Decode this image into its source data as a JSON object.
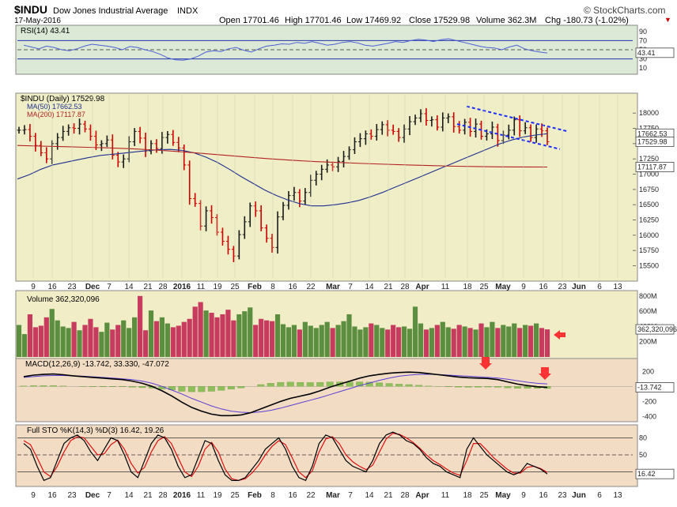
{
  "header": {
    "symbol": "$INDU",
    "name": "Dow Jones Industrial Average",
    "exchange": "INDX",
    "date": "17-May-2016",
    "open": "Open 17701.46",
    "high": "High 17701.46",
    "low": "Low 17469.92",
    "close": "Close 17529.98",
    "volume": "Volume 362.3M",
    "chg": "Chg -180.73 (-1.02%)",
    "watermark": "© StockCharts.com"
  },
  "colors": {
    "up": "#1a1a1a",
    "down": "#cc0000",
    "ma50": "#1f2f8f",
    "ma200": "#b22222",
    "rsi": "#4d5fd6",
    "channel": "#1a2cff",
    "arrow": "#ff3333",
    "vol_up": "#5b8f3f",
    "vol_down": "#c73b5e",
    "bg_rsi": "#dbe9d6",
    "bg_price": "#efeec7",
    "bg_vol": "#f1edc7",
    "bg_macd": "#f2dcc4",
    "bg_sto": "#f2dcc4"
  },
  "chart_data": [
    {
      "type": "line",
      "title": "RSI(14) 43.41",
      "legend": [
        {
          "name": "RSI(14)",
          "value": "43.41"
        }
      ],
      "ylim": [
        0,
        100
      ],
      "y_ticks": [
        10,
        30,
        50,
        70,
        90
      ],
      "levels": [
        30,
        70
      ],
      "last_label": "43.41",
      "series": [
        {
          "name": "RSI(14)",
          "values": [
            60,
            56,
            52,
            58,
            55,
            50,
            48,
            52,
            58,
            62,
            60,
            58,
            55,
            50,
            57,
            55,
            50,
            46,
            40,
            32,
            28,
            27,
            30,
            36,
            45,
            48,
            46,
            52,
            55,
            49,
            45,
            52,
            58,
            60,
            63,
            62,
            66,
            64,
            68,
            64,
            60,
            62,
            66,
            68,
            65,
            60,
            58,
            61,
            64,
            68,
            66,
            70,
            73,
            71,
            68,
            72,
            74,
            70,
            66,
            62,
            58,
            55,
            54,
            50,
            56,
            60,
            52,
            48,
            45,
            43
          ]
        }
      ]
    },
    {
      "type": "line",
      "title": "$INDU (Daily) 17529.98",
      "legend": [
        {
          "name": "$INDU (Daily)",
          "value": "17529.98"
        },
        {
          "name": "MA(50)",
          "value": "17662.53"
        },
        {
          "name": "MA(200)",
          "value": "17117.87"
        }
      ],
      "ylim": [
        15300,
        18300
      ],
      "y_ticks": [
        15500,
        15750,
        16000,
        16250,
        16500,
        16750,
        17000,
        17250,
        17500,
        17750,
        18000
      ],
      "right_labels": [
        "17662.53",
        "17529.98",
        "17117.87"
      ],
      "x_tick_labels": [
        "9",
        "16",
        "23",
        "Dec",
        "7",
        "14",
        "21",
        "28",
        "2016",
        "11",
        "19",
        "25",
        "Feb",
        "8",
        "16",
        "22",
        "Mar",
        "7",
        "14",
        "21",
        "28",
        "Apr",
        "11",
        "18",
        "25",
        "May",
        "9",
        "16",
        "23",
        "Jun",
        "6",
        "13"
      ],
      "close": [
        17720,
        17730,
        17620,
        17470,
        17350,
        17250,
        17500,
        17600,
        17700,
        17760,
        17750,
        17820,
        17740,
        17620,
        17480,
        17500,
        17560,
        17310,
        17200,
        17250,
        17530,
        17700,
        17590,
        17380,
        17500,
        17420,
        17600,
        17650,
        17520,
        17430,
        17150,
        16600,
        16520,
        16150,
        16400,
        16290,
        16050,
        15900,
        15770,
        15660,
        16010,
        16220,
        16480,
        16400,
        16120,
        15950,
        15800,
        16300,
        16490,
        16650,
        16700,
        16560,
        16700,
        16900,
        17000,
        17080,
        17150,
        17120,
        17210,
        17290,
        17400,
        17530,
        17580,
        17660,
        17620,
        17730,
        17810,
        17720,
        17700,
        17600,
        17740,
        17860,
        17920,
        17990,
        17880,
        17890,
        17770,
        17920,
        17940,
        17780,
        17720,
        17850,
        17700,
        17820,
        17620,
        17660,
        17770,
        17550,
        17640,
        17720,
        17890,
        17710,
        17760,
        17600,
        17740,
        17710,
        17530
      ],
      "series": [
        {
          "name": "MA(50)",
          "values": [
            16920,
            16990,
            17080,
            17150,
            17190,
            17230,
            17270,
            17305,
            17325,
            17345,
            17365,
            17385,
            17400,
            17405,
            17390,
            17350,
            17280,
            17190,
            17080,
            16960,
            16850,
            16740,
            16650,
            16575,
            16515,
            16480,
            16480,
            16500,
            16530,
            16570,
            16630,
            16700,
            16780,
            16860,
            16940,
            17020,
            17100,
            17180,
            17260,
            17340,
            17420,
            17500,
            17560,
            17610,
            17640,
            17662
          ]
        },
        {
          "name": "MA(200)",
          "values": [
            17470,
            17460,
            17450,
            17440,
            17430,
            17415,
            17395,
            17370,
            17340,
            17310,
            17280,
            17250,
            17225,
            17205,
            17190,
            17175,
            17162,
            17150,
            17140,
            17130,
            17124,
            17120,
            17118,
            17117
          ]
        }
      ]
    },
    {
      "type": "bar",
      "title": "Volume 362,320,096",
      "legend": [
        {
          "name": "Volume",
          "value": "362,320,096"
        }
      ],
      "ylim": [
        0,
        850
      ],
      "y_ticks": [
        200,
        400,
        600,
        800
      ],
      "tick_labels": [
        "200M",
        "400M",
        "600M",
        "800M"
      ],
      "last_label": "362,320,096",
      "values": [
        420,
        300,
        560,
        390,
        410,
        520,
        630,
        480,
        400,
        380,
        460,
        350,
        420,
        500,
        390,
        330,
        450,
        360,
        420,
        480,
        380,
        520,
        800,
        350,
        610,
        470,
        520,
        440,
        390,
        410,
        460,
        500,
        660,
        720,
        610,
        580,
        520,
        560,
        620,
        480,
        560,
        600,
        650,
        420,
        500,
        480,
        470,
        560,
        430,
        390,
        420,
        360,
        460,
        410,
        380,
        420,
        460,
        380,
        420,
        470,
        560,
        400,
        360,
        390,
        440,
        420,
        380,
        360,
        420,
        390,
        400,
        370,
        660,
        440,
        360,
        380,
        420,
        460,
        390,
        370,
        420,
        400,
        380,
        360,
        440,
        390,
        460,
        380,
        420,
        400,
        440,
        380,
        420,
        410,
        440,
        380,
        362
      ]
    },
    {
      "type": "line",
      "title": "MACD(12,26,9) -13.742, 33.330, -47.072",
      "legend": [
        {
          "name": "MACD(12,26,9)",
          "value": "-13.742"
        },
        {
          "name": "Signal",
          "value": "33.330"
        },
        {
          "name": "Histogram",
          "value": "-47.072"
        }
      ],
      "ylim": [
        -450,
        350
      ],
      "y_ticks": [
        -400,
        -200,
        200
      ],
      "last_label": "-13.742",
      "series": [
        {
          "name": "MACD",
          "values": [
            130,
            150,
            160,
            165,
            155,
            140,
            130,
            120,
            110,
            100,
            90,
            70,
            40,
            0,
            -60,
            -130,
            -210,
            -280,
            -330,
            -370,
            -390,
            -390,
            -380,
            -350,
            -300,
            -250,
            -200,
            -160,
            -130,
            -100,
            -60,
            -10,
            30,
            70,
            110,
            140,
            160,
            175,
            185,
            190,
            185,
            170,
            155,
            140,
            125,
            115,
            110,
            105,
            90,
            60,
            30,
            10,
            -5,
            -13.742
          ]
        },
        {
          "name": "Signal",
          "values": [
            120,
            130,
            140,
            145,
            145,
            140,
            135,
            128,
            120,
            110,
            100,
            90,
            70,
            40,
            0,
            -50,
            -100,
            -160,
            -210,
            -260,
            -300,
            -330,
            -345,
            -350,
            -340,
            -320,
            -290,
            -255,
            -220,
            -185,
            -150,
            -110,
            -70,
            -30,
            10,
            45,
            80,
            110,
            135,
            150,
            160,
            162,
            158,
            150,
            142,
            135,
            128,
            120,
            110,
            95,
            75,
            55,
            40,
            33.33
          ]
        }
      ]
    },
    {
      "type": "line",
      "title": "Full STO %K(14,3) %D(3) 16.42, 19.26",
      "legend": [
        {
          "name": "%K(14,3)",
          "value": "16.42"
        },
        {
          "name": "%D(3)",
          "value": "19.26"
        }
      ],
      "ylim": [
        0,
        100
      ],
      "y_ticks": [
        20,
        50,
        80
      ],
      "levels": [
        20,
        50,
        80
      ],
      "last_label": "16.42",
      "series": [
        {
          "name": "%K",
          "values": [
            70,
            60,
            30,
            5,
            10,
            40,
            70,
            80,
            85,
            75,
            55,
            40,
            60,
            80,
            75,
            50,
            20,
            10,
            40,
            70,
            85,
            80,
            60,
            30,
            10,
            15,
            45,
            75,
            70,
            40,
            15,
            5,
            5,
            10,
            25,
            40,
            60,
            70,
            80,
            60,
            30,
            10,
            5,
            30,
            70,
            85,
            80,
            60,
            40,
            30,
            25,
            20,
            40,
            70,
            85,
            90,
            85,
            75,
            70,
            60,
            45,
            35,
            30,
            20,
            15,
            10,
            60,
            80,
            65,
            50,
            40,
            30,
            20,
            15,
            20,
            35,
            30,
            25,
            16.42
          ]
        },
        {
          "name": "%D",
          "values": [
            75,
            68,
            45,
            20,
            12,
            30,
            55,
            75,
            82,
            80,
            65,
            50,
            52,
            68,
            76,
            60,
            35,
            18,
            28,
            55,
            75,
            82,
            70,
            45,
            20,
            12,
            30,
            60,
            72,
            55,
            25,
            8,
            5,
            8,
            18,
            32,
            50,
            65,
            75,
            68,
            45,
            20,
            10,
            22,
            55,
            78,
            82,
            70,
            50,
            38,
            30,
            24,
            32,
            55,
            78,
            88,
            86,
            80,
            72,
            62,
            50,
            40,
            33,
            25,
            18,
            14,
            40,
            70,
            70,
            58,
            45,
            35,
            25,
            18,
            18,
            28,
            30,
            26,
            19.26
          ]
        }
      ]
    }
  ]
}
